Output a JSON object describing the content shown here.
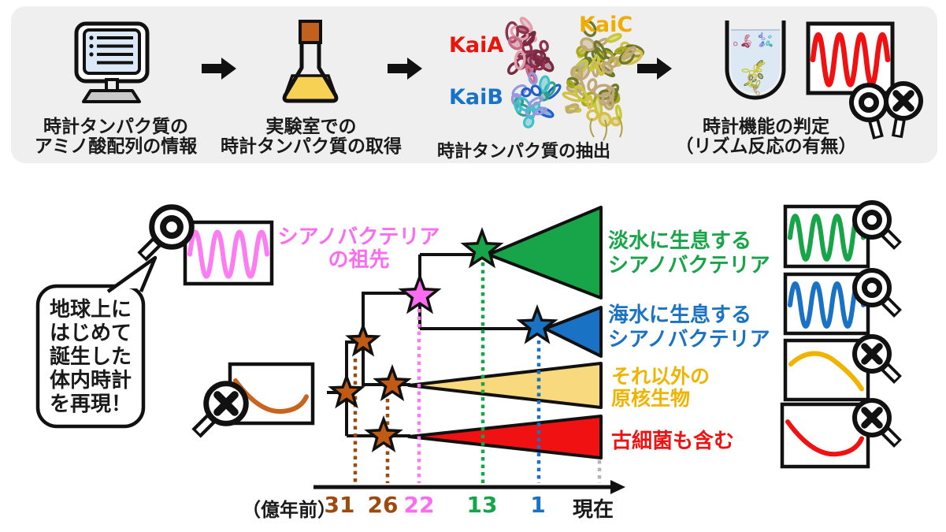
{
  "colors": {
    "panel_bg": "#efefef",
    "ink": "#1a1a1a",
    "red": "#f01212",
    "blue": "#1a72c4",
    "green": "#18a449",
    "gold": "#f0b400",
    "gold_fill": "#f8d97d",
    "pink": "#fb6cf0",
    "pink_wave": "#fc7df2",
    "kai_a": "#e8150c",
    "kai_b": "#1873c8",
    "kai_c": "#f0ac00",
    "brown_star": "#c05a14",
    "brown": "#9c4a0e",
    "brown_curve": "#c8641e",
    "gray_dotted": "#b5b5b5",
    "screen_blue": "#dbe8f7",
    "base_gray": "#c9c9c9",
    "flask_liquid": "#f7d154",
    "flask_cork": "#c2601d",
    "tube_water": "#dce9f5"
  },
  "proteins": {
    "kai_a_palette": [
      "#8f3050",
      "#c96a86",
      "#e0a0ac",
      "#7a2840"
    ],
    "kai_b_palette": [
      "#2060c8",
      "#40c0c8",
      "#9898e0",
      "#2f9e8a"
    ],
    "kai_c_palette": [
      "#a8a820",
      "#c8c838",
      "#c0a878",
      "#6f7a28",
      "#d4c04a"
    ]
  },
  "pipeline": {
    "step1": {
      "line1": "時計タンパク質の",
      "line2": "アミノ酸配列の情報"
    },
    "step2": {
      "line1": "実験室での",
      "line2": "時計タンパク質の取得"
    },
    "step3": {
      "kai_a": "KaiA",
      "kai_b": "KaiB",
      "kai_c": "KaiC",
      "caption": "時計タンパク質の抽出"
    },
    "step4": {
      "line1": "時計機能の判定",
      "line2": "（リズム反応の有無）"
    }
  },
  "tree": {
    "ancestor": {
      "line1": "シアノバクテリア",
      "line2": "の祖先"
    },
    "freshwater": {
      "line1": "淡水に生息する",
      "line2": "シアノバクテリア"
    },
    "seawater": {
      "line1": "海水に生息する",
      "line2": "シアノバクテリア"
    },
    "other_prokaryotes": {
      "line1": "それ以外の",
      "line2": "原核生物"
    },
    "archaea": "古細菌も含む",
    "bubble": [
      "地球上に",
      "はじめて",
      "誕生した",
      "体内時計",
      "を再現！"
    ]
  },
  "timeline": {
    "unit": "（億年前）",
    "t31": "31",
    "t26": "26",
    "t22": "22",
    "t13": "13",
    "t1": "1",
    "now": "現在"
  }
}
